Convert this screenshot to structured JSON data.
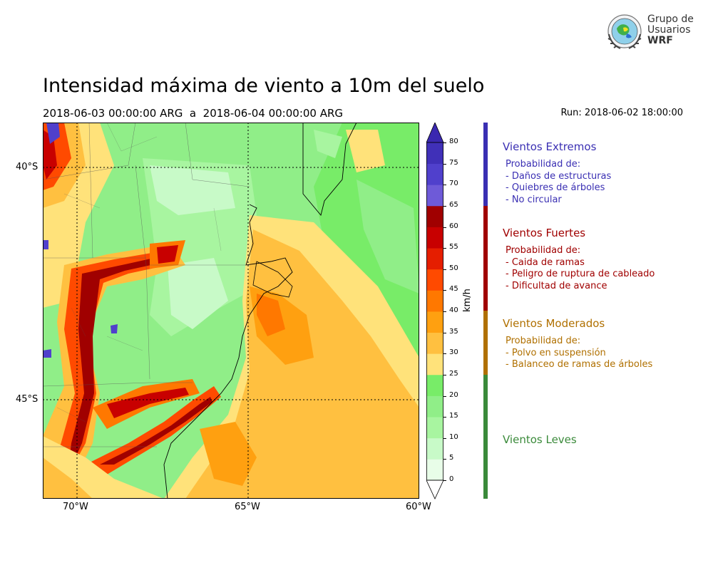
{
  "header": {
    "title": "Intensidad máxima de viento a 10m del suelo",
    "period": "2018-06-03 00:00:00 ARG  a  2018-06-04 00:00:00 ARG",
    "run": "Run: 2018-06-02 18:00:00"
  },
  "logo": {
    "line1": "Grupo de",
    "line2": "Usuarios",
    "line3": "WRF"
  },
  "map": {
    "lon_ticks": [
      "70°W",
      "65°W",
      "60°W"
    ],
    "lat_ticks": [
      "40°S",
      "45°S"
    ],
    "lon_range": [
      -71,
      -60
    ],
    "lat_range": [
      -38.9,
      -47.0
    ],
    "gridlines": true
  },
  "colorbar": {
    "units": "km/h",
    "ticks": [
      "0",
      "5",
      "10",
      "15",
      "20",
      "25",
      "30",
      "35",
      "40",
      "45",
      "50",
      "55",
      "60",
      "65",
      "70",
      "75",
      "80"
    ],
    "colors": [
      "#e8fde8",
      "#c8fac8",
      "#a8f5a0",
      "#90ee88",
      "#78ec68",
      "#ffe27a",
      "#ffc040",
      "#ffa010",
      "#ff7800",
      "#ff4a00",
      "#e51e00",
      "#c80000",
      "#a00000",
      "#6e5ad8",
      "#5040cc",
      "#4030b8"
    ],
    "under_color": "#ffffff",
    "over_color": "#3a28b0"
  },
  "categories": [
    {
      "name": "Vientos Extremos",
      "color": "#3a2fb3",
      "lines": [
        "Probabilidad de:",
        "- Daños de estructuras",
        "- Quiebres de árboles",
        "- No circular"
      ]
    },
    {
      "name": "Vientos Fuertes",
      "color": "#a00000",
      "lines": [
        "Probabilidad de:",
        "- Caida de ramas",
        "- Peligro de ruptura de cableado",
        "- Dificultad de avance"
      ]
    },
    {
      "name": "Vientos Moderados",
      "color": "#b07000",
      "lines": [
        "Probabilidad de:",
        "- Polvo en suspensión",
        "- Balanceo de ramas de árboles"
      ]
    },
    {
      "name": "Vientos Leves",
      "color": "#3a8a3a",
      "lines": []
    }
  ]
}
